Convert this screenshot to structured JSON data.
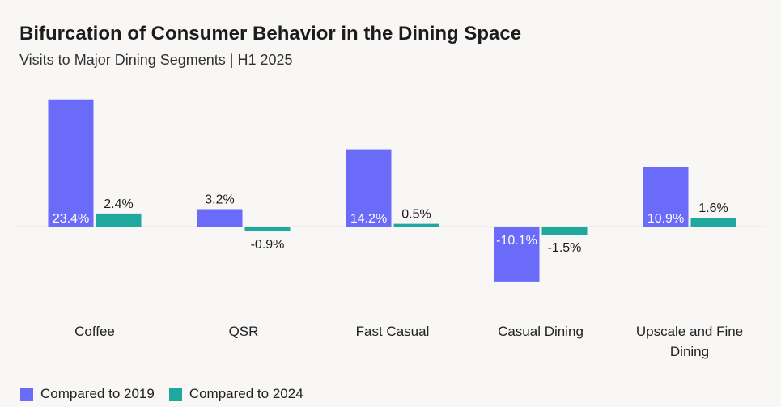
{
  "chart_data": {
    "type": "bar",
    "title": "Bifurcation of Consumer Behavior in the Dining Space",
    "subtitle": "Visits to Major Dining Segments | H1 2025",
    "categories": [
      [
        "Coffee"
      ],
      [
        "QSR"
      ],
      [
        "Fast Casual"
      ],
      [
        "Casual Dining"
      ],
      [
        "Upscale and Fine",
        "Dining"
      ]
    ],
    "series": [
      {
        "name": "Compared to 2019",
        "color": "#6b6bfa",
        "values": [
          23.4,
          3.2,
          14.2,
          -10.1,
          10.9
        ],
        "labels": [
          "23.4%",
          "3.2%",
          "14.2%",
          "-10.1%",
          "10.9%"
        ]
      },
      {
        "name": "Compared to 2024",
        "color": "#1fa89e",
        "values": [
          2.4,
          -0.9,
          0.5,
          -1.5,
          1.6
        ],
        "labels": [
          "2.4%",
          "-0.9%",
          "0.5%",
          "-1.5%",
          "1.6%"
        ]
      }
    ],
    "ylim": [
      -15,
      25
    ],
    "xlabel": "",
    "ylabel": "",
    "grid": false,
    "legend": "bottom-left"
  }
}
